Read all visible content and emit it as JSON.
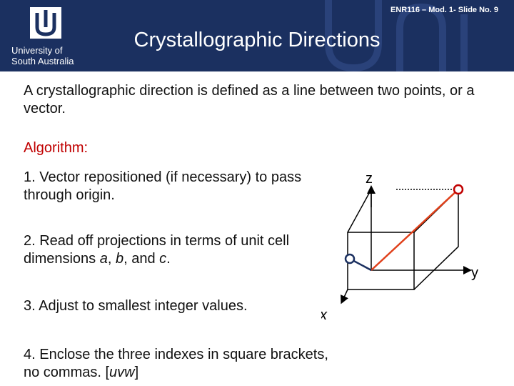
{
  "header": {
    "logo_lines": [
      "University of",
      "South Australia"
    ],
    "slide_ref": "ENR116 – Mod. 1- Slide No. 9",
    "title": "Crystallographic Directions"
  },
  "body": {
    "intro": "A crystallographic direction is defined as a line between two points, or a vector.",
    "algorithm_label": "Algorithm:",
    "steps": [
      [
        "1. Vector repositioned (if necessary) to pass through origin."
      ],
      [
        "2. Read off projections in terms of unit cell dimensions ",
        "a",
        ", ",
        "b",
        ", and ",
        "c",
        "."
      ],
      [
        "3. Adjust to smallest integer values."
      ],
      [
        "4. Enclose the three indexes in square brackets, no commas. [",
        "uvw",
        "]"
      ]
    ]
  },
  "diagram": {
    "axis_labels": {
      "z": "z",
      "y": "y",
      "x": "x"
    }
  }
}
